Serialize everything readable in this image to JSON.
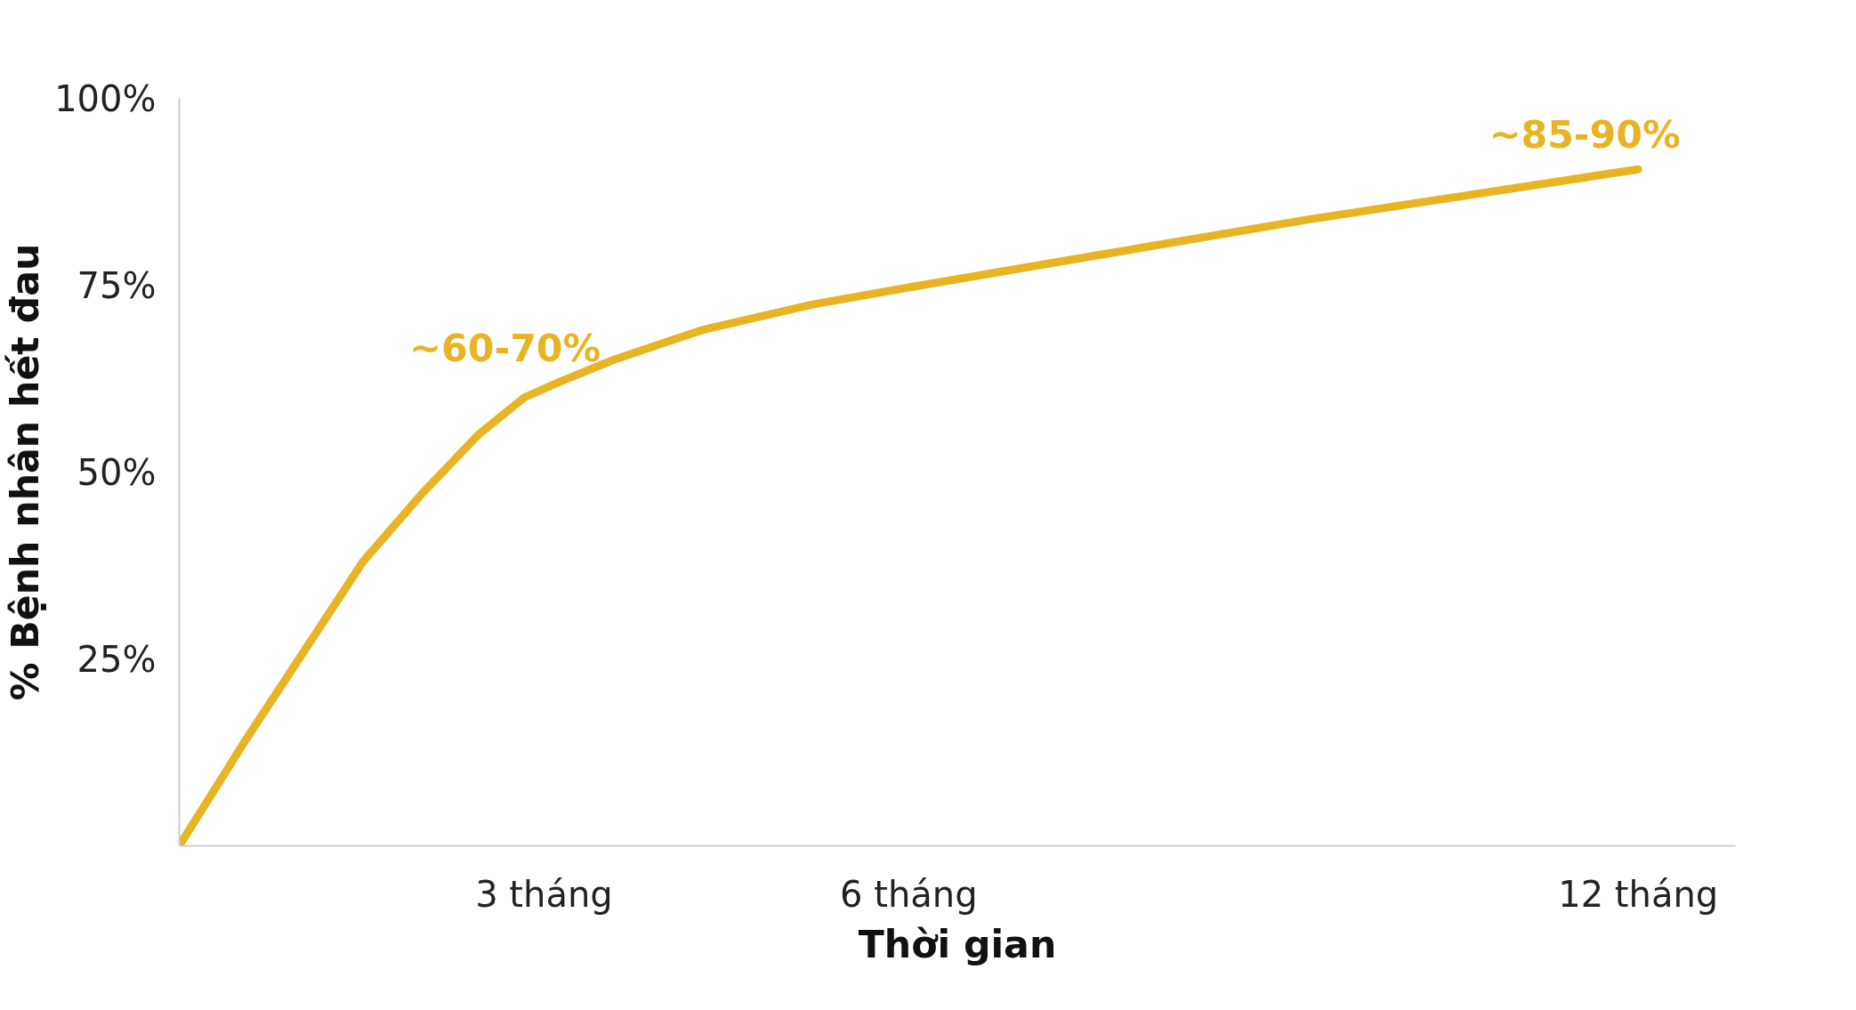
{
  "chart_data": {
    "type": "line",
    "xlabel": "Thời gian",
    "ylabel": "% Bệnh nhân hết đau",
    "x": [
      0,
      0.54,
      1.51,
      1.99,
      2.46,
      2.84,
      3.12,
      3.57,
      4.3,
      5.2,
      6,
      7.19,
      9.29,
      12
    ],
    "series": [
      {
        "color": "#e8b424",
        "values": [
          0,
          14,
          38,
          47,
          55,
          60,
          62,
          65,
          69,
          72.4,
          74.7,
          78,
          83.8,
          90.5
        ]
      }
    ],
    "xlim": [
      0,
      12.8
    ],
    "ylim": [
      0,
      100
    ],
    "xticks": [
      {
        "value": 3,
        "label": "3 tháng"
      },
      {
        "value": 6,
        "label": "6 tháng"
      },
      {
        "value": 12,
        "label": "12 tháng"
      }
    ],
    "yticks": [
      {
        "value": 25,
        "label": "25%"
      },
      {
        "value": 50,
        "label": "50%"
      },
      {
        "value": 75,
        "label": "75%"
      },
      {
        "value": 100,
        "label": "100%"
      }
    ],
    "annotations": [
      {
        "text": "~60-70%",
        "x": 3.12,
        "y": 62
      },
      {
        "text": "~85-90%",
        "x": 12,
        "y": 90.5
      }
    ],
    "grid": false,
    "marker": "none",
    "line_style": "solid"
  }
}
